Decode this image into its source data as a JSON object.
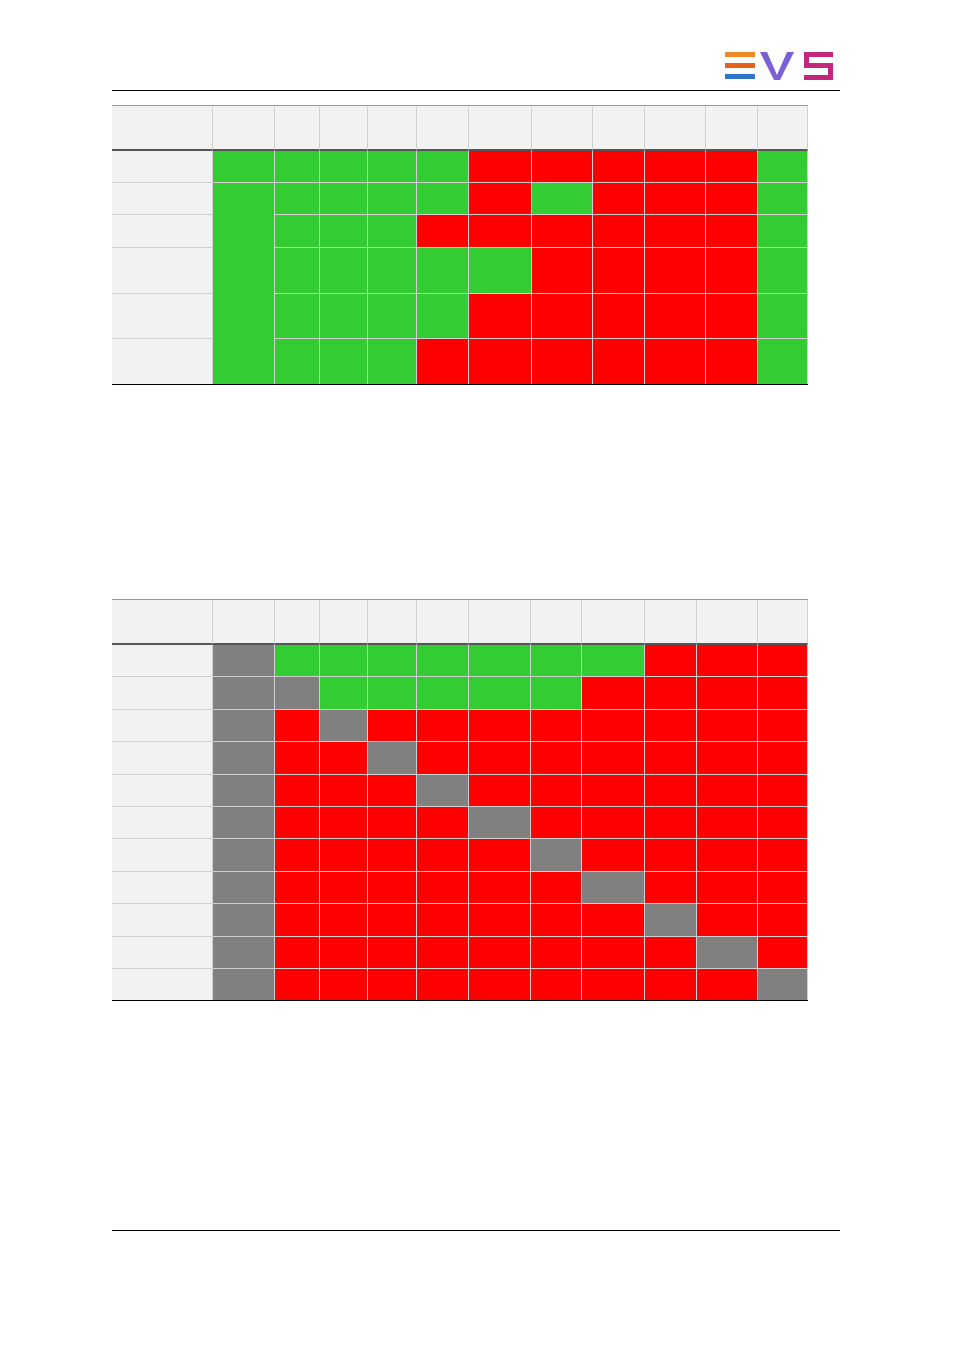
{
  "table_1": {
    "rows": [
      [
        "#f2f2f2",
        "#f2f2f2",
        "#f2f2f2",
        "#f2f2f2",
        "#f2f2f2",
        "#f2f2f2",
        "#f2f2f2",
        "#f2f2f2",
        "#f2f2f2",
        "#f2f2f2",
        "#f2f2f2",
        "#f2f2f2"
      ],
      [
        "#f2f2f2",
        "#33cc33",
        "#33cc33",
        "#33cc33",
        "#33cc33",
        "#33cc33",
        "#ff0000",
        "#ff0000",
        "#ff0000",
        "#ff0000",
        "#ff0000",
        "#33cc33"
      ],
      [
        "#f2f2f2",
        "#33cc33",
        "#33cc33",
        "#33cc33",
        "#33cc33",
        "#33cc33",
        "#ff0000",
        "#33cc33",
        "#ff0000",
        "#ff0000",
        "#ff0000",
        "#33cc33"
      ],
      [
        "#f2f2f2",
        null,
        "#33cc33",
        "#33cc33",
        "#33cc33",
        "#ff0000",
        "#ff0000",
        "#ff0000",
        "#ff0000",
        "#ff0000",
        "#ff0000",
        "#33cc33"
      ],
      [
        "#f2f2f2",
        null,
        "#33cc33",
        "#33cc33",
        "#33cc33",
        "#33cc33",
        "#33cc33",
        "#ff0000",
        "#ff0000",
        "#ff0000",
        "#ff0000",
        "#33cc33"
      ],
      [
        "#f2f2f2",
        null,
        "#33cc33",
        "#33cc33",
        "#33cc33",
        "#33cc33",
        "#ff0000",
        "#ff0000",
        "#ff0000",
        "#ff0000",
        "#ff0000",
        "#33cc33"
      ],
      [
        "#f2f2f2",
        null,
        "#33cc33",
        "#33cc33",
        "#33cc33",
        "#ff0000",
        "#ff0000",
        "#ff0000",
        "#ff0000",
        "#ff0000",
        "#ff0000",
        "#33cc33"
      ]
    ]
  },
  "table_2": {
    "rows": [
      [
        "#f2f2f2",
        "#f2f2f2",
        "#f2f2f2",
        "#f2f2f2",
        "#f2f2f2",
        "#f2f2f2",
        "#f2f2f2",
        "#f2f2f2",
        "#f2f2f2",
        "#f2f2f2",
        "#f2f2f2",
        "#f2f2f2"
      ],
      [
        "#f2f2f2",
        "#808080",
        "#33cc33",
        "#33cc33",
        "#33cc33",
        "#33cc33",
        "#33cc33",
        "#33cc33",
        "#33cc33",
        "#ff0000",
        "#ff0000",
        "#ff0000"
      ],
      [
        "#f2f2f2",
        "#808080",
        "#808080",
        "#33cc33",
        "#33cc33",
        "#33cc33",
        "#33cc33",
        "#33cc33",
        "#ff0000",
        "#ff0000",
        "#ff0000",
        "#ff0000"
      ],
      [
        "#f2f2f2",
        "#808080",
        "#ff0000",
        "#808080",
        "#ff0000",
        "#ff0000",
        "#ff0000",
        "#ff0000",
        "#ff0000",
        "#ff0000",
        "#ff0000",
        "#ff0000"
      ],
      [
        "#f2f2f2",
        "#808080",
        "#ff0000",
        "#ff0000",
        "#808080",
        "#ff0000",
        "#ff0000",
        "#ff0000",
        "#ff0000",
        "#ff0000",
        "#ff0000",
        "#ff0000"
      ],
      [
        "#f2f2f2",
        "#808080",
        "#ff0000",
        "#ff0000",
        "#ff0000",
        "#808080",
        "#ff0000",
        "#ff0000",
        "#ff0000",
        "#ff0000",
        "#ff0000",
        "#ff0000"
      ],
      [
        "#f2f2f2",
        "#808080",
        "#ff0000",
        "#ff0000",
        "#ff0000",
        "#ff0000",
        "#808080",
        "#ff0000",
        "#ff0000",
        "#ff0000",
        "#ff0000",
        "#ff0000"
      ],
      [
        "#f2f2f2",
        "#808080",
        "#ff0000",
        "#ff0000",
        "#ff0000",
        "#ff0000",
        "#ff0000",
        "#808080",
        "#ff0000",
        "#ff0000",
        "#ff0000",
        "#ff0000"
      ],
      [
        "#f2f2f2",
        "#808080",
        "#ff0000",
        "#ff0000",
        "#ff0000",
        "#ff0000",
        "#ff0000",
        "#ff0000",
        "#808080",
        "#ff0000",
        "#ff0000",
        "#ff0000"
      ],
      [
        "#f2f2f2",
        "#808080",
        "#ff0000",
        "#ff0000",
        "#ff0000",
        "#ff0000",
        "#ff0000",
        "#ff0000",
        "#ff0000",
        "#808080",
        "#ff0000",
        "#ff0000"
      ],
      [
        "#f2f2f2",
        "#808080",
        "#ff0000",
        "#ff0000",
        "#ff0000",
        "#ff0000",
        "#ff0000",
        "#ff0000",
        "#ff0000",
        "#ff0000",
        "#808080",
        "#ff0000"
      ],
      [
        "#f2f2f2",
        "#808080",
        "#ff0000",
        "#ff0000",
        "#ff0000",
        "#ff0000",
        "#ff0000",
        "#ff0000",
        "#ff0000",
        "#ff0000",
        "#ff0000",
        "#808080"
      ]
    ]
  }
}
